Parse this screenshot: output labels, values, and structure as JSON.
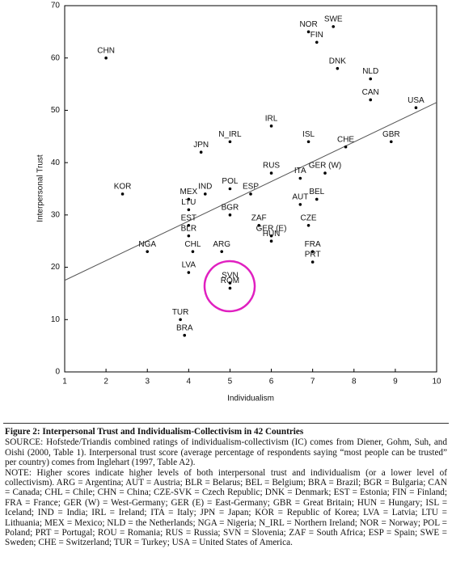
{
  "chart_data": {
    "type": "scatter",
    "xlabel": "Individualism",
    "ylabel": "Interpersonal Trust",
    "labels": [
      "CHN",
      "NOR",
      "SWE",
      "FIN",
      "DNK",
      "NLD",
      "CAN",
      "USA",
      "IRL",
      "ISL",
      "N_IRL",
      "CHE",
      "GBR",
      "JPN",
      "RUS",
      "ITA",
      "GER (W)",
      "POL",
      "ESP",
      "IND",
      "KOR",
      "MEX",
      "BEL",
      "AUT",
      "LTU",
      "BGR",
      "EST",
      "ZAF",
      "CZE",
      "GER (E)",
      "BLR",
      "HUN",
      "NGA",
      "CHL",
      "ARG",
      "FRA",
      "PRT",
      "LVA",
      "SVN",
      "ROM",
      "TUR",
      "BRA"
    ],
    "x": [
      2,
      6.9,
      7.5,
      7.1,
      7.6,
      8.4,
      8.4,
      9.5,
      6,
      6.9,
      5,
      7.8,
      8.9,
      4.3,
      6,
      6.7,
      7.3,
      5,
      5.5,
      4.4,
      2.4,
      4,
      7.1,
      6.7,
      4,
      5,
      4,
      5.7,
      6.9,
      6,
      4,
      6,
      3,
      4.1,
      4.8,
      7,
      7,
      4,
      5,
      5,
      3.8,
      3.9
    ],
    "y": [
      60,
      65,
      66,
      63,
      58,
      56,
      52,
      50.5,
      47,
      44,
      44,
      43,
      44,
      42,
      38,
      37,
      38,
      35,
      34,
      34,
      34,
      33,
      33,
      32,
      31,
      30,
      28,
      28,
      28,
      26,
      26,
      25,
      23,
      23,
      23,
      23,
      21,
      19,
      17,
      16,
      10,
      7
    ],
    "color": "#000000",
    "trend_line": {
      "x": [
        1,
        10
      ],
      "y": [
        17.5,
        51.5
      ],
      "color": "#555555"
    },
    "xlim": [
      1,
      10
    ],
    "xticks": [
      1,
      2,
      3,
      4,
      5,
      6,
      7,
      8,
      9,
      10
    ],
    "ylim": [
      0,
      70
    ],
    "yticks": [
      0,
      10,
      20,
      30,
      40,
      50,
      60,
      70
    ],
    "grid": false
  },
  "caption": {
    "title": "Figure 2: Interpersonal Trust and Individualism-Collectivism in 42 Countries",
    "source": "SOURCE: Hofstede/Triandis combined ratings of individualism-collectivism (IC) comes from Diener, Gohm, Suh, and Oishi (2000, Table 1). Interpersonal trust score (average percentage of respondents saying “most people can be trusted” per country) comes from Inglehart (1997, Table A2).",
    "note": "NOTE: Higher scores indicate higher levels of both interpersonal trust and individualism (or a lower level of collectivism). ARG = Argentina; AUT = Austria; BLR = Belarus; BEL = Belgium; BRA = Brazil; BGR = Bulgaria; CAN = Canada; CHL = Chile; CHN = China; CZE-SVK = Czech Republic; DNK = Denmark; EST = Estonia; FIN = Finland; FRA = France; GER (W) = West-Germany; GER (E) = East-Germany; GBR = Great Britain; HUN = Hungary; ISL = Iceland; IND = India; IRL = Ireland; ITA = Italy; JPN = Japan; KOR = Republic of Korea; LVA = Latvia; LTU = Lithuania; MEX = Mexico; NLD = the Netherlands; NGA = Nigeria; N_IRL = Northern Ireland; NOR = Norway; POL = Poland; PRT = Portugal; ROU = Romania; RUS = Russia; SVN = Slovenia; ZAF = South Africa; ESP = Spain; SWE = Sweden; CHE = Switzerland; TUR = Turkey; USA = United States of America."
  }
}
